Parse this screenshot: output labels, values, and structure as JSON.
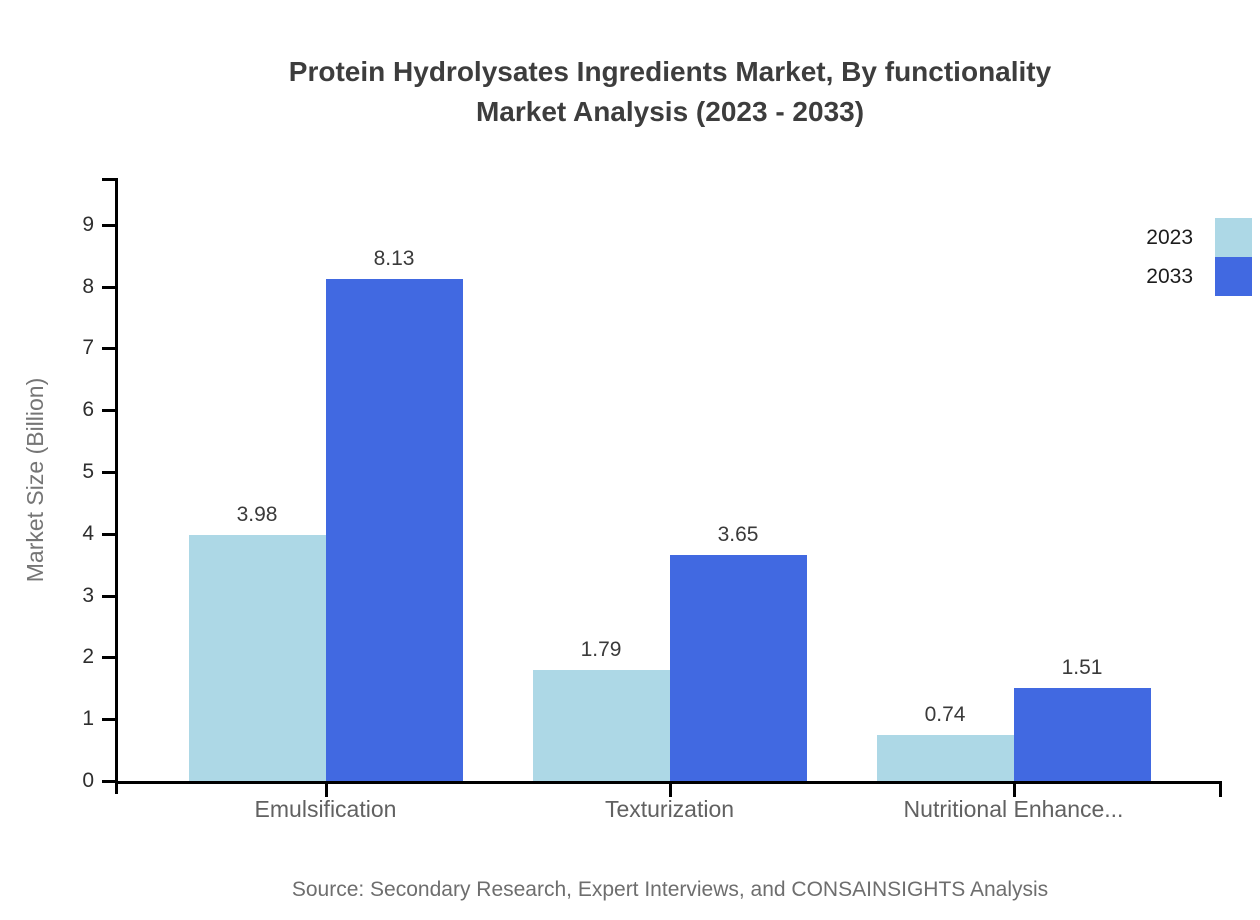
{
  "chart_data": {
    "type": "bar",
    "title": "Protein Hydrolysates Ingredients Market, By functionality",
    "subtitle": "Market Analysis (2023 - 2033)",
    "categories": [
      "Emulsification",
      "Texturization",
      "Nutritional Enhance..."
    ],
    "series": [
      {
        "name": "2023",
        "color": "#add8e6",
        "values": [
          3.98,
          1.79,
          0.74
        ]
      },
      {
        "name": "2033",
        "color": "#4169e1",
        "values": [
          8.13,
          3.65,
          1.51
        ]
      }
    ],
    "xlabel": "",
    "ylabel": "Market Size (Billion)",
    "ylim": [
      0,
      9.8
    ],
    "yticks": [
      0,
      1,
      2,
      3,
      4,
      5,
      6,
      7,
      8,
      9
    ],
    "grid": false,
    "legend_position": "top-right",
    "value_label_decimals": 2,
    "axis_color": "#000000",
    "source": "Source: Secondary Research, Expert Interviews, and CONSAINSIGHTS Analysis"
  }
}
